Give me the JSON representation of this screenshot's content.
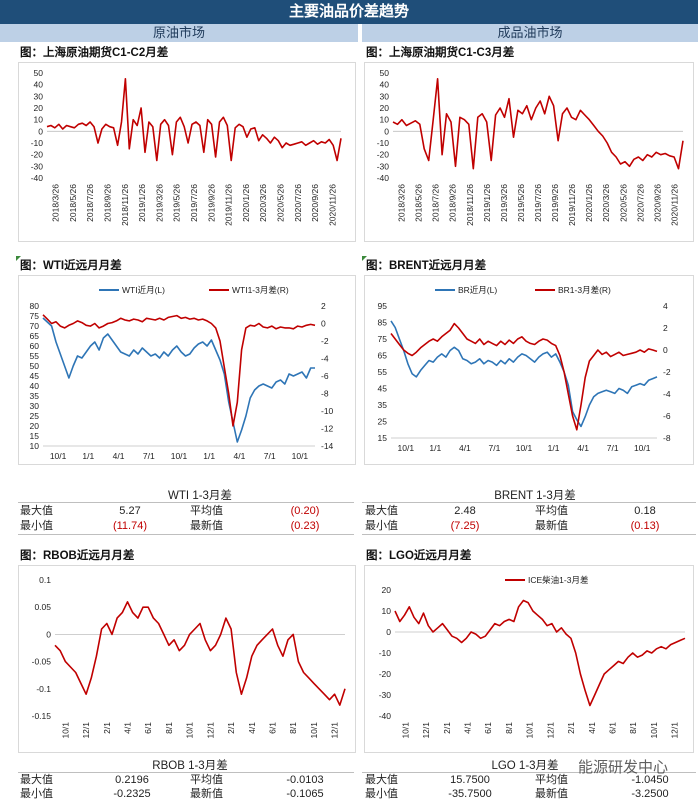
{
  "header": {
    "title": "主要油品价差趋势",
    "left_section": "原油市场",
    "right_section": "成品油市场"
  },
  "panel_titles": {
    "p1": "图：上海原油期货C1-C2月差",
    "p2": "图：上海原油期货C1-C3月差",
    "p3": "图：WTI近远月月差",
    "p4": "图：BRENT近远月月差",
    "p5": "图：RBOB近远月月差",
    "p6": "图：LGO近远月月差"
  },
  "stats": {
    "wti": {
      "title": "WTI 1-3月差",
      "max_label": "最大值",
      "max": "5.27",
      "avg_label": "平均值",
      "avg": "(0.20)",
      "min_label": "最小值",
      "min": "(11.74)",
      "last_label": "最新值",
      "last": "(0.23)"
    },
    "brent": {
      "title": "BRENT 1-3月差",
      "max_label": "最大值",
      "max": "2.48",
      "avg_label": "平均值",
      "avg": "0.18",
      "min_label": "最小值",
      "min": "(7.25)",
      "last_label": "最新值",
      "last": "(0.13)"
    },
    "rbob": {
      "title": "RBOB 1-3月差",
      "max_label": "最大值",
      "max": "0.2196",
      "avg_label": "平均值",
      "avg": "-0.0103",
      "min_label": "最小值",
      "min": "-0.2325",
      "last_label": "最新值",
      "last": "-0.1065"
    },
    "lgo": {
      "title": "LGO 1-3月差",
      "max_label": "最大值",
      "max": "15.7500",
      "avg_label": "平均值",
      "avg": "-1.0450",
      "min_label": "最小值",
      "min": "-35.7500",
      "last_label": "最新值",
      "last": "-3.2500"
    }
  },
  "watermark": "能源研发中心",
  "colors": {
    "red": "#c00000",
    "blue": "#2e75b6",
    "header": "#1f4e79",
    "section": "#bdd0e6"
  },
  "chart_data": [
    {
      "id": "sc_c1c2",
      "type": "line",
      "ylim": [
        -40,
        50
      ],
      "yticks": [
        50,
        40,
        30,
        20,
        10,
        0,
        -10,
        -20,
        -30,
        -40
      ],
      "x_labels": [
        "2018/3/26",
        "2018/5/26",
        "2018/7/26",
        "2018/9/26",
        "2018/11/26",
        "2019/1/26",
        "2019/3/26",
        "2019/5/26",
        "2019/7/26",
        "2019/9/26",
        "2019/11/26",
        "2020/1/26",
        "2020/3/26",
        "2020/5/26",
        "2020/7/26",
        "2020/9/26",
        "2020/11/26"
      ],
      "series": [
        {
          "color": "#c00000",
          "values": [
            4,
            5,
            3,
            6,
            2,
            5,
            4,
            3,
            6,
            7,
            5,
            8,
            4,
            -10,
            2,
            6,
            4,
            3,
            -12,
            8,
            45,
            -15,
            10,
            5,
            20,
            -18,
            8,
            4,
            -25,
            6,
            10,
            5,
            -20,
            8,
            12,
            4,
            -10,
            6,
            8,
            5,
            -18,
            10,
            6,
            -22,
            8,
            12,
            5,
            -25,
            3,
            6,
            4,
            -5,
            2,
            3,
            -8,
            -3,
            -6,
            -10,
            -5,
            -8,
            -14,
            -10,
            -12,
            -11,
            -10,
            -9,
            -12,
            -10,
            -8,
            -11,
            -9,
            -10,
            -7,
            -12,
            -25,
            -6
          ]
        }
      ]
    },
    {
      "id": "sc_c1c3",
      "type": "line",
      "ylim": [
        -40,
        50
      ],
      "yticks": [
        50,
        40,
        30,
        20,
        10,
        0,
        -10,
        -20,
        -30,
        -40
      ],
      "x_labels": [
        "2018/3/26",
        "2018/5/26",
        "2018/7/26",
        "2018/9/26",
        "2018/11/26",
        "2019/1/26",
        "2019/3/26",
        "2019/5/26",
        "2019/7/26",
        "2019/9/26",
        "2019/11/26",
        "2020/1/26",
        "2020/3/26",
        "2020/5/26",
        "2020/7/26",
        "2020/9/26",
        "2020/11/26"
      ],
      "series": [
        {
          "color": "#c00000",
          "values": [
            8,
            6,
            10,
            5,
            7,
            9,
            6,
            -15,
            -25,
            10,
            45,
            -20,
            15,
            8,
            -30,
            12,
            10,
            6,
            -32,
            12,
            15,
            8,
            -25,
            14,
            20,
            12,
            28,
            -5,
            18,
            15,
            22,
            10,
            20,
            26,
            15,
            30,
            22,
            -8,
            15,
            20,
            12,
            10,
            18,
            14,
            10,
            5,
            0,
            -4,
            -10,
            -18,
            -22,
            -28,
            -26,
            -30,
            -24,
            -22,
            -25,
            -20,
            -22,
            -18,
            -20,
            -19,
            -21,
            -22,
            -32,
            -8
          ]
        }
      ]
    },
    {
      "id": "wti",
      "type": "line",
      "x_labels": [
        "10/1",
        "1/1",
        "4/1",
        "7/1",
        "10/1",
        "1/1",
        "4/1",
        "7/1",
        "10/1"
      ],
      "ylim_left": [
        10,
        80
      ],
      "yticks_left": [
        80,
        75,
        70,
        65,
        60,
        55,
        50,
        45,
        40,
        35,
        30,
        25,
        20,
        15,
        10
      ],
      "ylim_right": [
        -14,
        2
      ],
      "yticks_right": [
        2,
        0,
        -2,
        -4,
        -6,
        -8,
        -10,
        -12,
        -14
      ],
      "series": [
        {
          "name": "WTI近月(L)",
          "axis": "left",
          "color": "#2e75b6",
          "values": [
            74,
            72,
            70,
            62,
            56,
            50,
            44,
            50,
            55,
            54,
            57,
            60,
            62,
            58,
            64,
            66,
            63,
            60,
            57,
            56,
            55,
            58,
            56,
            59,
            57,
            55,
            56,
            54,
            57,
            55,
            58,
            60,
            57,
            55,
            56,
            59,
            61,
            62,
            60,
            63,
            58,
            53,
            46,
            32,
            22,
            12,
            18,
            25,
            34,
            38,
            40,
            41,
            40,
            39,
            42,
            43,
            41,
            46,
            45,
            46,
            47,
            44,
            49,
            49
          ]
        },
        {
          "name": "WTI1-3月差(R)",
          "axis": "right",
          "color": "#c00000",
          "values": [
            1,
            0.5,
            0,
            0.2,
            -0.3,
            -0.5,
            -0.2,
            0,
            0.3,
            0.1,
            -0.2,
            -0.3,
            0,
            -0.5,
            -0.3,
            0,
            0.1,
            0.3,
            0.6,
            0.4,
            0.3,
            0.5,
            0.4,
            0.2,
            0.6,
            0.5,
            0.4,
            0.6,
            0.4,
            0.7,
            0.8,
            0.9,
            0.6,
            0.7,
            0.5,
            0.6,
            0.4,
            0.5,
            0.3,
            0,
            -0.5,
            -2,
            -5,
            -8,
            -11.7,
            -9,
            -3,
            -0.5,
            -0.2,
            -0.3,
            0,
            -0.4,
            -0.5,
            -0.3,
            -0.6,
            -0.4,
            -0.5,
            -0.5,
            -0.6,
            -0.3,
            -0.4,
            -0.2,
            -0.1,
            -0.2
          ]
        }
      ]
    },
    {
      "id": "brent",
      "type": "line",
      "x_labels": [
        "10/1",
        "1/1",
        "4/1",
        "7/1",
        "10/1",
        "1/1",
        "4/1",
        "7/1",
        "10/1"
      ],
      "ylim_left": [
        15,
        95
      ],
      "yticks_left": [
        95,
        85,
        75,
        65,
        55,
        45,
        35,
        25,
        15
      ],
      "ylim_right": [
        -8,
        4
      ],
      "yticks_right": [
        4,
        2,
        0,
        -2,
        -4,
        -6,
        -8
      ],
      "series": [
        {
          "name": "BR近月(L)",
          "axis": "left",
          "color": "#2e75b6",
          "values": [
            86,
            82,
            75,
            68,
            60,
            54,
            52,
            56,
            59,
            62,
            61,
            64,
            66,
            64,
            68,
            70,
            68,
            63,
            62,
            60,
            61,
            63,
            60,
            62,
            61,
            59,
            62,
            60,
            63,
            61,
            64,
            66,
            65,
            63,
            61,
            64,
            66,
            67,
            64,
            66,
            61,
            55,
            47,
            31,
            26,
            22,
            28,
            35,
            40,
            42,
            43,
            44,
            43,
            42,
            45,
            44,
            42,
            46,
            47,
            48,
            47,
            50,
            51,
            52
          ]
        },
        {
          "name": "BR1-3月差(R)",
          "axis": "right",
          "color": "#c00000",
          "values": [
            1.5,
            1,
            0.5,
            0,
            -0.3,
            -0.5,
            -0.2,
            0.2,
            0.5,
            0.8,
            1,
            0.8,
            1.2,
            1.5,
            1.8,
            2.4,
            2,
            1.5,
            1,
            0.8,
            0.6,
            1,
            0.5,
            0.8,
            0.6,
            0.4,
            0.8,
            0.5,
            0.9,
            0.6,
            1,
            1.2,
            0.8,
            0.6,
            0.5,
            0.8,
            1,
            0.9,
            0.6,
            0.4,
            -0.5,
            -2,
            -4,
            -6,
            -7.25,
            -5,
            -2.5,
            -1,
            -0.5,
            0,
            -0.4,
            -0.2,
            -0.6,
            -0.4,
            -0.2,
            -0.5,
            -0.4,
            -0.3,
            -0.2,
            0,
            -0.2,
            0.1,
            0,
            -0.13
          ]
        }
      ]
    },
    {
      "id": "rbob",
      "type": "line",
      "x_labels": [
        "10/1",
        "12/1",
        "2/1",
        "4/1",
        "6/1",
        "8/1",
        "10/1",
        "12/1",
        "2/1",
        "4/1",
        "6/1",
        "8/1",
        "10/1",
        "12/1"
      ],
      "ylim": [
        -0.15,
        0.1
      ],
      "yticks": [
        0.1,
        0.05,
        0,
        -0.05,
        -0.1,
        -0.15
      ],
      "series": [
        {
          "color": "#c00000",
          "values": [
            -0.02,
            -0.03,
            -0.05,
            -0.06,
            -0.07,
            -0.09,
            -0.11,
            -0.08,
            -0.04,
            0.01,
            0.02,
            0.0,
            0.03,
            0.04,
            0.06,
            0.04,
            0.03,
            0.05,
            0.05,
            0.03,
            0.02,
            0.0,
            -0.02,
            -0.01,
            -0.03,
            -0.02,
            0.0,
            0.01,
            0.02,
            -0.01,
            -0.03,
            -0.02,
            0.0,
            0.03,
            0.01,
            -0.07,
            -0.11,
            -0.08,
            -0.04,
            -0.02,
            -0.01,
            0.0,
            0.01,
            -0.02,
            -0.04,
            -0.01,
            0.0,
            -0.05,
            -0.07,
            -0.08,
            -0.09,
            -0.1,
            -0.11,
            -0.12,
            -0.11,
            -0.13,
            -0.1
          ]
        }
      ]
    },
    {
      "id": "lgo",
      "type": "line",
      "x_labels": [
        "10/1",
        "12/1",
        "2/1",
        "4/1",
        "6/1",
        "8/1",
        "10/1",
        "12/1",
        "2/1",
        "4/1",
        "6/1",
        "8/1",
        "10/1",
        "12/1"
      ],
      "ylim": [
        -40,
        20
      ],
      "yticks": [
        20,
        10,
        0,
        -10,
        -20,
        -30,
        -40
      ],
      "series": [
        {
          "name": "ICE柴油1-3月差",
          "color": "#c00000",
          "values": [
            10,
            5,
            8,
            12,
            7,
            4,
            9,
            3,
            0,
            2,
            4,
            1,
            -2,
            -3,
            -5,
            -3,
            0,
            -1,
            -3,
            -2,
            1,
            4,
            3,
            5,
            6,
            5,
            12,
            15,
            14,
            10,
            8,
            6,
            3,
            4,
            0,
            2,
            -1,
            -3,
            -10,
            -20,
            -28,
            -35,
            -30,
            -25,
            -20,
            -18,
            -16,
            -14,
            -15,
            -12,
            -10,
            -12,
            -11,
            -9,
            -10,
            -8,
            -7,
            -8,
            -6,
            -5,
            -4,
            -3
          ]
        }
      ]
    }
  ]
}
